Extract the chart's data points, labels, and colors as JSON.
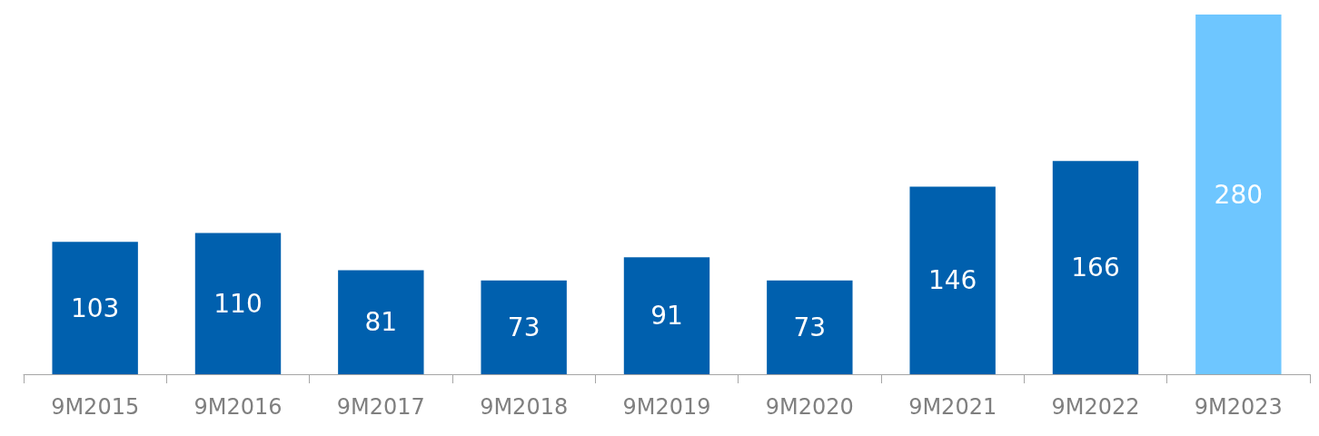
{
  "chart_data": {
    "type": "bar",
    "categories": [
      "9M2015",
      "9M2016",
      "9M2017",
      "9M2018",
      "9M2019",
      "9M2020",
      "9M2021",
      "9M2022",
      "9M2023"
    ],
    "values": [
      103,
      110,
      81,
      73,
      91,
      73,
      146,
      166,
      280
    ],
    "colors": [
      "#0060ae",
      "#0060ae",
      "#0060ae",
      "#0060ae",
      "#0060ae",
      "#0060ae",
      "#0060ae",
      "#0060ae",
      "#6ec6ff"
    ],
    "data_labels": true
  }
}
